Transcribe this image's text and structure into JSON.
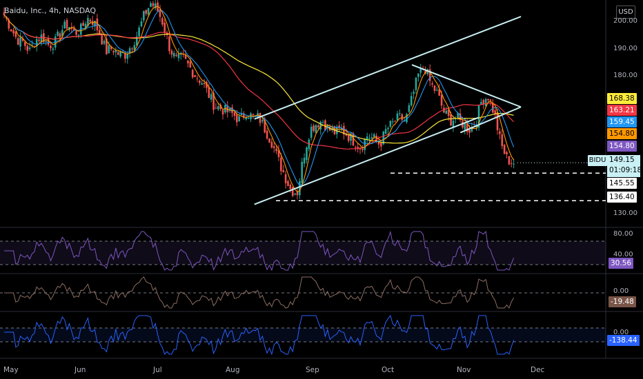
{
  "header": {
    "title": "Baidu, Inc., 4h, NASDAQ",
    "currency": "USD"
  },
  "price_axis": {
    "ticks": [
      "200.00",
      "190.00",
      "180.00",
      "130.00"
    ]
  },
  "price_tags": [
    {
      "value": "168.38",
      "color": "#ffeb3b"
    },
    {
      "value": "163.21",
      "color": "#f23645"
    },
    {
      "value": "159.45",
      "color": "#2196f3"
    },
    {
      "value": "154.80",
      "color": "#ff9800"
    },
    {
      "value": "154.80",
      "color": "#7e57c2"
    },
    {
      "value": "145.55",
      "color": "#ffffff"
    },
    {
      "value": "136.40",
      "color": "#ffffff"
    }
  ],
  "last_price": {
    "ticker": "BIDU",
    "price": "149.15",
    "countdown": "01:09:18",
    "color": "#c9f0f4"
  },
  "indicators": [
    {
      "name": "oscillator-1",
      "ref": "80.00",
      "ref2": "40.00",
      "value": "30.56",
      "color": "#7e57c2"
    },
    {
      "name": "oscillator-2",
      "ref": "0.00",
      "value": "-19.48",
      "color": "#795548"
    },
    {
      "name": "oscillator-3",
      "ref": "0.00",
      "value": "-138.44",
      "color": "#2962ff"
    }
  ],
  "x_axis": {
    "labels": [
      "May",
      "Jun",
      "Jul",
      "Aug",
      "Sep",
      "Oct",
      "Nov",
      "Dec"
    ]
  },
  "chart_data": {
    "type": "candlestick",
    "title": "Baidu, Inc., 4h, NASDAQ",
    "ylim": [
      128,
      203
    ],
    "months": [
      "May",
      "Jun",
      "Jul",
      "Aug",
      "Sep",
      "Oct",
      "Nov",
      "Dec"
    ],
    "closes": [
      198,
      194,
      190,
      189,
      186,
      190,
      191,
      188,
      189,
      193,
      195,
      192,
      193,
      197,
      196,
      192,
      186,
      187,
      185,
      185,
      188,
      192,
      198,
      202,
      200,
      195,
      187,
      183,
      184,
      181,
      178,
      176,
      172,
      168,
      167,
      166,
      165,
      163,
      166,
      164,
      164,
      160,
      156,
      150,
      145,
      140,
      139,
      151,
      160,
      162,
      163,
      160,
      159,
      160,
      158,
      156,
      154,
      158,
      157,
      155,
      160,
      162,
      164,
      163,
      170,
      178,
      181,
      175,
      172,
      166,
      163,
      164,
      162,
      160,
      162,
      170,
      171,
      165,
      155,
      150,
      149
    ],
    "support_levels": [
      145.55,
      136.4
    ],
    "channel_upper": [
      [
        0.42,
        163.5
      ],
      [
        0.86,
        197.5
      ]
    ],
    "channel_lower": [
      [
        0.42,
        135.2
      ],
      [
        0.79,
        164
      ]
    ],
    "wedge_upper": [
      [
        0.68,
        181.5
      ],
      [
        0.86,
        167.5
      ]
    ],
    "wedge_lower": [
      [
        0.76,
        159
      ],
      [
        0.86,
        167.5
      ]
    ],
    "grid": false,
    "colors": {
      "bullish": "#26a69a",
      "bearish": "#ef5350",
      "ma_yellow": "#ffeb3b",
      "ma_red": "#f23645",
      "ma_blue": "#2196f3",
      "ma_orange": "#ff9800",
      "trendline": "#c9f0f4"
    }
  }
}
